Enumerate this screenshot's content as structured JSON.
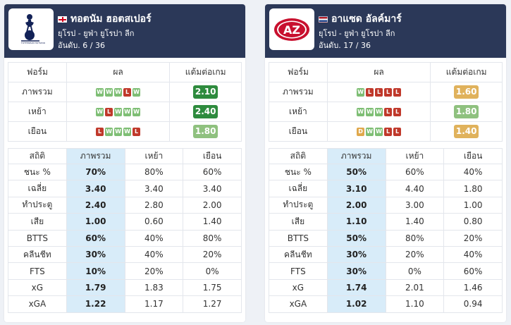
{
  "colors": {
    "header_bg": "#2b3858",
    "highlight_col": "#d8ecf9",
    "form_win": "#7ebe74",
    "form_loss": "#c0392b",
    "form_draw": "#e0a84c"
  },
  "teams": [
    {
      "name": "ทอตนัม ฮอตสเปอร์",
      "flag_icon": "england-flag-icon",
      "logo_icon": "tottenham-hotspur-crest",
      "logo_text": "TOTTENHAM HOTSPUR",
      "league": "ยุโรป - ยูฟ่า ยูโรปา ลีก",
      "rank": "อันดับ. 6 / 36",
      "form_headers": [
        "ฟอร์ม",
        "ผล",
        "แต้มต่อเกม"
      ],
      "form_rows": [
        {
          "label": "ภาพรวม",
          "results": [
            "W",
            "W",
            "W",
            "L",
            "W"
          ],
          "ppg": "2.10",
          "ppg_color": "#2e8b3e"
        },
        {
          "label": "เหย้า",
          "results": [
            "W",
            "L",
            "W",
            "W",
            "W"
          ],
          "ppg": "2.40",
          "ppg_color": "#2e8b3e"
        },
        {
          "label": "เยือน",
          "results": [
            "L",
            "W",
            "W",
            "W",
            "L"
          ],
          "ppg": "1.80",
          "ppg_color": "#8fc17f"
        }
      ],
      "stats_headers": [
        "สถิติ",
        "ภาพรวม",
        "เหย้า",
        "เยือน"
      ],
      "stats_rows": [
        {
          "label": "ชนะ %",
          "overall": "70%",
          "home": "80%",
          "away": "60%"
        },
        {
          "label": "เฉลี่ย",
          "overall": "3.40",
          "home": "3.40",
          "away": "3.40"
        },
        {
          "label": "ทำประตู",
          "overall": "2.40",
          "home": "2.80",
          "away": "2.00"
        },
        {
          "label": "เสีย",
          "overall": "1.00",
          "home": "0.60",
          "away": "1.40"
        },
        {
          "label": "BTTS",
          "overall": "60%",
          "home": "40%",
          "away": "80%"
        },
        {
          "label": "คลีนชีท",
          "overall": "30%",
          "home": "40%",
          "away": "20%"
        },
        {
          "label": "FTS",
          "overall": "10%",
          "home": "20%",
          "away": "0%"
        },
        {
          "label": "xG",
          "overall": "1.79",
          "home": "1.83",
          "away": "1.75"
        },
        {
          "label": "xGA",
          "overall": "1.22",
          "home": "1.17",
          "away": "1.27"
        }
      ]
    },
    {
      "name": "อาแซด อัลค์มาร์",
      "flag_icon": "netherlands-flag-icon",
      "logo_icon": "az-alkmaar-crest",
      "logo_text": "AZ",
      "league": "ยุโรป - ยูฟ่า ยูโรปา ลีก",
      "rank": "อันดับ. 17 / 36",
      "form_headers": [
        "ฟอร์ม",
        "ผล",
        "แต้มต่อเกม"
      ],
      "form_rows": [
        {
          "label": "ภาพรวม",
          "results": [
            "W",
            "L",
            "L",
            "L",
            "L"
          ],
          "ppg": "1.60",
          "ppg_color": "#e0b25c"
        },
        {
          "label": "เหย้า",
          "results": [
            "W",
            "W",
            "W",
            "L",
            "L"
          ],
          "ppg": "1.80",
          "ppg_color": "#8fc17f"
        },
        {
          "label": "เยือน",
          "results": [
            "D",
            "W",
            "W",
            "L",
            "L"
          ],
          "ppg": "1.40",
          "ppg_color": "#e0b25c"
        }
      ],
      "stats_headers": [
        "สถิติ",
        "ภาพรวม",
        "เหย้า",
        "เยือน"
      ],
      "stats_rows": [
        {
          "label": "ชนะ %",
          "overall": "50%",
          "home": "60%",
          "away": "40%"
        },
        {
          "label": "เฉลี่ย",
          "overall": "3.10",
          "home": "4.40",
          "away": "1.80"
        },
        {
          "label": "ทำประตู",
          "overall": "2.00",
          "home": "3.00",
          "away": "1.00"
        },
        {
          "label": "เสีย",
          "overall": "1.10",
          "home": "1.40",
          "away": "0.80"
        },
        {
          "label": "BTTS",
          "overall": "50%",
          "home": "80%",
          "away": "20%"
        },
        {
          "label": "คลีนชีท",
          "overall": "30%",
          "home": "20%",
          "away": "40%"
        },
        {
          "label": "FTS",
          "overall": "30%",
          "home": "0%",
          "away": "60%"
        },
        {
          "label": "xG",
          "overall": "1.74",
          "home": "2.01",
          "away": "1.46"
        },
        {
          "label": "xGA",
          "overall": "1.02",
          "home": "1.10",
          "away": "0.94"
        }
      ]
    }
  ]
}
